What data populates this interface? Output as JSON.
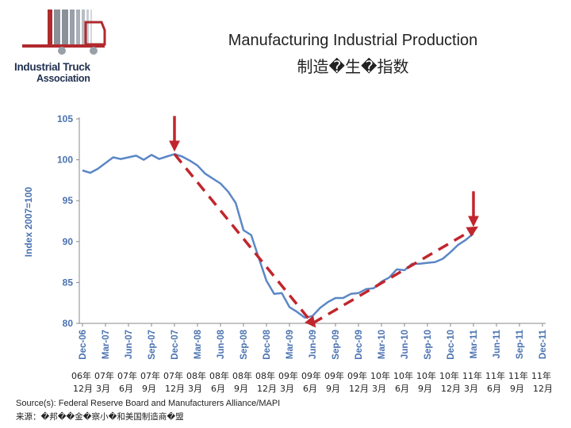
{
  "logo": {
    "line1": "Industrial Truck",
    "line2": "Association",
    "icon": "truck-bars-logo-icon"
  },
  "title": {
    "line1": "Manufacturing Industrial Production",
    "line2": "制造�生�指数"
  },
  "chart_data": {
    "type": "line",
    "ylabel": "Index 2007=100",
    "ylim": [
      80,
      105
    ],
    "yticks": [
      80,
      85,
      90,
      95,
      100,
      105
    ],
    "grid": false,
    "x_tick_labels": [
      "Dec-06",
      "Mar-07",
      "Jun-07",
      "Sep-07",
      "Dec-07",
      "Mar-08",
      "Jun-08",
      "Sep-08",
      "Dec-08",
      "Mar-09",
      "Jun-09",
      "Sep-09",
      "Dec-09",
      "Mar-10",
      "Jun-10",
      "Sep-10",
      "Dec-10",
      "Mar-11",
      "Jun-11",
      "Sep-11",
      "Dec-11"
    ],
    "x_tick_labels_cn": [
      "06年 12月",
      "07年 3月",
      "07年 6月",
      "07年 9月",
      "07年 12月",
      "08年 3月",
      "08年 6月",
      "08年 9月",
      "08年 12月",
      "09年 3月",
      "09年 6月",
      "09年 9月",
      "09年 12月",
      "10年 3月",
      "10年 6月",
      "10年 9月",
      "10年 12月",
      "11年 3月",
      "11年 6月",
      "11年 9月",
      "11年 12月"
    ],
    "series": [
      {
        "color": "#5b87c5",
        "x": [
          "2006-12",
          "2007-01",
          "2007-02",
          "2007-03",
          "2007-04",
          "2007-05",
          "2007-06",
          "2007-07",
          "2007-08",
          "2007-09",
          "2007-10",
          "2007-11",
          "2007-12",
          "2008-01",
          "2008-02",
          "2008-03",
          "2008-04",
          "2008-05",
          "2008-06",
          "2008-07",
          "2008-08",
          "2008-09",
          "2008-10",
          "2008-11",
          "2008-12",
          "2009-01",
          "2009-02",
          "2009-03",
          "2009-04",
          "2009-05",
          "2009-06",
          "2009-07",
          "2009-08",
          "2009-09",
          "2009-10",
          "2009-11",
          "2009-12",
          "2010-01",
          "2010-02",
          "2010-03",
          "2010-04",
          "2010-05",
          "2010-06",
          "2010-07",
          "2010-08",
          "2010-09",
          "2010-10",
          "2010-11",
          "2010-12",
          "2011-01",
          "2011-02",
          "2011-03"
        ],
        "values": [
          98.7,
          98.4,
          98.9,
          99.6,
          100.3,
          100.1,
          100.3,
          100.5,
          100.0,
          100.6,
          100.1,
          100.4,
          100.7,
          100.4,
          99.9,
          99.3,
          98.3,
          97.7,
          97.1,
          96.1,
          94.7,
          91.4,
          90.8,
          88.0,
          85.2,
          83.6,
          83.7,
          82.0,
          81.4,
          80.7,
          80.9,
          81.9,
          82.6,
          83.1,
          83.1,
          83.6,
          83.7,
          84.2,
          84.3,
          85.1,
          85.6,
          86.6,
          86.5,
          87.3,
          87.3,
          87.4,
          87.5,
          87.9,
          88.7,
          89.6,
          90.2,
          91.0
        ]
      }
    ],
    "annotations": {
      "arrows": [
        {
          "label": "peak-arrow",
          "x": "2007-12",
          "y": 100.7
        },
        {
          "label": "recovery-arrow",
          "x": "2011-03",
          "y": 91.5
        }
      ],
      "trend_lines": [
        {
          "from": {
            "x": "2007-12",
            "y": 100.7
          },
          "to": {
            "x": "2009-06",
            "y": 80.0
          },
          "color": "#c0262c"
        },
        {
          "from": {
            "x": "2009-06",
            "y": 80.0
          },
          "to": {
            "x": "2011-03",
            "y": 91.5
          },
          "color": "#c0262c"
        }
      ]
    }
  },
  "source": {
    "line1": "Source(s): Federal Reserve Board and Manufacturers Alliance/MAPI",
    "line2": "来源：�邦��金�察小�和美国制造商�盟"
  }
}
